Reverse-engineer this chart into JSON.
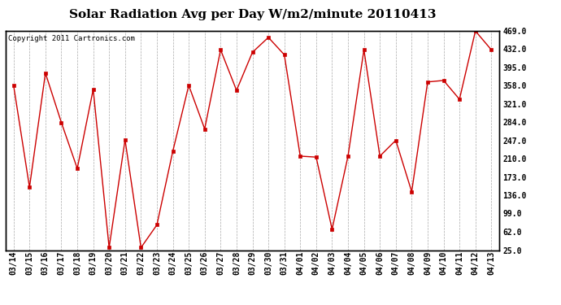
{
  "title": "Solar Radiation Avg per Day W/m2/minute 20110413",
  "copyright": "Copyright 2011 Cartronics.com",
  "x_labels": [
    "03/14",
    "03/15",
    "03/16",
    "03/17",
    "03/18",
    "03/19",
    "03/20",
    "03/21",
    "03/22",
    "03/23",
    "03/24",
    "03/25",
    "03/26",
    "03/27",
    "03/28",
    "03/29",
    "03/30",
    "03/31",
    "04/01",
    "04/02",
    "04/03",
    "04/04",
    "04/05",
    "04/06",
    "04/07",
    "04/08",
    "04/09",
    "04/10",
    "04/11",
    "04/12",
    "04/13"
  ],
  "y_values": [
    358,
    152,
    383,
    283,
    190,
    350,
    30,
    248,
    30,
    76,
    225,
    358,
    270,
    430,
    348,
    425,
    455,
    420,
    215,
    213,
    67,
    215,
    430,
    215,
    247,
    143,
    365,
    368,
    330,
    468,
    430
  ],
  "y_ticks": [
    25.0,
    62.0,
    99.0,
    136.0,
    173.0,
    210.0,
    247.0,
    284.0,
    321.0,
    358.0,
    395.0,
    432.0,
    469.0
  ],
  "line_color": "#cc0000",
  "marker": "s",
  "marker_size": 2.5,
  "bg_color": "#ffffff",
  "plot_bg_color": "#ffffff",
  "grid_color": "#aaaaaa",
  "grid_style": "--",
  "title_fontsize": 11,
  "copyright_fontsize": 6.5,
  "tick_fontsize": 7,
  "ylim": [
    25.0,
    469.0
  ],
  "figsize": [
    6.9,
    3.75
  ],
  "dpi": 100
}
